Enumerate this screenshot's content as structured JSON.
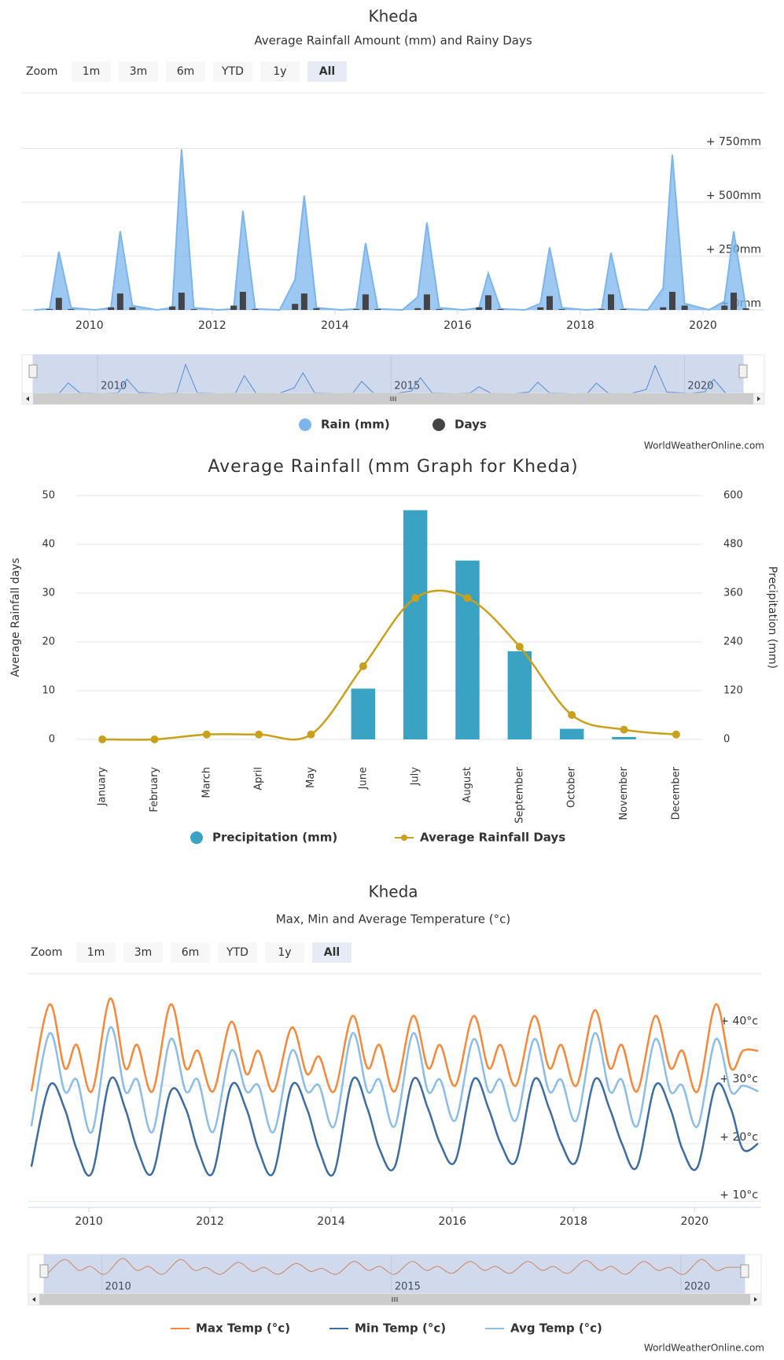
{
  "chart_data": [
    {
      "type": "area",
      "title": "Kheda",
      "subtitle": "Average Rainfall Amount (mm) and Rainy Days",
      "zoom_label": "Zoom",
      "zoom_buttons": [
        "1m",
        "3m",
        "6m",
        "YTD",
        "1y",
        "All"
      ],
      "zoom_disabled": [
        0,
        1
      ],
      "zoom_selected": 5,
      "x": [
        2009.1,
        2009.35,
        2009.5,
        2009.7,
        2010.1,
        2010.35,
        2010.5,
        2010.7,
        2011.1,
        2011.35,
        2011.5,
        2011.7,
        2012.1,
        2012.35,
        2012.5,
        2012.7,
        2013.1,
        2013.35,
        2013.5,
        2013.7,
        2014.1,
        2014.35,
        2014.5,
        2014.7,
        2015.1,
        2015.35,
        2015.5,
        2015.7,
        2016.1,
        2016.35,
        2016.5,
        2016.7,
        2017.1,
        2017.35,
        2017.5,
        2017.7,
        2018.1,
        2018.35,
        2018.5,
        2018.7,
        2019.1,
        2019.35,
        2019.5,
        2019.7,
        2020.1,
        2020.35,
        2020.5,
        2020.7
      ],
      "series": [
        {
          "name": "Rain (mm)",
          "type": "area",
          "color": "#7cb5ec",
          "values": [
            0,
            5,
            270,
            10,
            0,
            10,
            365,
            20,
            0,
            10,
            745,
            10,
            0,
            5,
            460,
            5,
            0,
            140,
            530,
            10,
            0,
            5,
            310,
            5,
            0,
            60,
            405,
            10,
            0,
            10,
            170,
            5,
            0,
            30,
            290,
            10,
            0,
            5,
            265,
            5,
            0,
            100,
            720,
            30,
            0,
            40,
            365,
            10
          ]
        },
        {
          "name": "Days",
          "type": "column",
          "axis": "y2",
          "color": "#434348",
          "values": [
            0,
            1,
            14,
            1,
            0,
            3,
            19,
            3,
            0,
            4,
            20,
            1,
            0,
            5,
            21,
            1,
            0,
            7,
            19,
            2,
            0,
            1,
            18,
            1,
            0,
            2,
            18,
            1,
            0,
            3,
            17,
            1,
            0,
            3,
            16,
            1,
            0,
            1,
            18,
            1,
            0,
            3,
            21,
            5,
            0,
            5,
            20,
            2
          ]
        }
      ],
      "xlim": [
        2008.9,
        2021
      ],
      "xticks": [
        2010,
        2012,
        2014,
        2016,
        2018,
        2020
      ],
      "ylim": [
        0,
        1000
      ],
      "yticks": [
        {
          "value": 0,
          "label": "+ 0mm"
        },
        {
          "value": 250,
          "label": "+ 250mm"
        },
        {
          "value": 500,
          "label": "+ 500mm"
        },
        {
          "value": 750,
          "label": "+ 750mm"
        }
      ],
      "y2lim": [
        0,
        250
      ],
      "grid": true,
      "navigator_xticks": [
        2010,
        2015,
        2020
      ],
      "credits": "WorldWeatherOnline.com"
    },
    {
      "type": "bar",
      "title": "Average Rainfall (mm Graph for Kheda)",
      "categories": [
        "January",
        "February",
        "March",
        "April",
        "May",
        "June",
        "July",
        "August",
        "September",
        "October",
        "November",
        "December"
      ],
      "series": [
        {
          "name": "Precipitation (mm)",
          "type": "column",
          "axis": "y2",
          "color": "#3aa3c4",
          "values": [
            0,
            0,
            0,
            0,
            0,
            125,
            564,
            440,
            217,
            26,
            6,
            0
          ]
        },
        {
          "name": "Average Rainfall Days",
          "type": "line",
          "color": "#c9a01a",
          "values": [
            0,
            0,
            1,
            1,
            1,
            15,
            29,
            29,
            19,
            5,
            2,
            1
          ]
        }
      ],
      "ylabel": "Average Rainfall days",
      "y2label": "Precipitation (mm)",
      "ylim": [
        0,
        50
      ],
      "yticks": [
        0,
        10,
        20,
        30,
        40,
        50
      ],
      "y2lim": [
        0,
        600
      ],
      "y2ticks": [
        0,
        120,
        240,
        360,
        480,
        600
      ],
      "grid": true
    },
    {
      "type": "line",
      "title": "Kheda",
      "subtitle": "Max, Min and Average Temperature (°c)",
      "zoom_label": "Zoom",
      "zoom_buttons": [
        "1m",
        "3m",
        "6m",
        "YTD",
        "1y",
        "All"
      ],
      "zoom_disabled": [
        0,
        1
      ],
      "zoom_selected": 5,
      "x": [
        2009.05,
        2009.35,
        2009.6,
        2009.8,
        2010.05,
        2010.35,
        2010.6,
        2010.8,
        2011.05,
        2011.35,
        2011.6,
        2011.8,
        2012.05,
        2012.35,
        2012.6,
        2012.8,
        2013.05,
        2013.35,
        2013.6,
        2013.8,
        2014.05,
        2014.35,
        2014.6,
        2014.8,
        2015.05,
        2015.35,
        2015.6,
        2015.8,
        2016.05,
        2016.35,
        2016.6,
        2016.8,
        2017.05,
        2017.35,
        2017.6,
        2017.8,
        2018.05,
        2018.35,
        2018.6,
        2018.8,
        2019.05,
        2019.35,
        2019.6,
        2019.8,
        2020.05,
        2020.35,
        2020.6,
        2020.8,
        2021.05
      ],
      "series": [
        {
          "name": "Max Temp (°c)",
          "type": "line",
          "color": "#f7883a",
          "values": [
            29,
            44,
            33,
            37,
            29,
            45,
            33,
            37,
            29,
            44,
            33,
            36,
            29,
            41,
            32,
            36,
            29,
            40,
            32,
            35,
            29,
            42,
            33,
            37,
            29,
            42,
            33,
            37,
            30,
            42,
            33,
            37,
            30,
            42,
            33,
            37,
            30,
            43,
            33,
            37,
            29,
            42,
            33,
            36,
            29,
            44,
            33,
            36,
            36
          ]
        },
        {
          "name": "Min Temp (°c)",
          "type": "line",
          "color": "#3d6ca0",
          "values": [
            16,
            30,
            26,
            19,
            15,
            31,
            26,
            19,
            15,
            29,
            26,
            19,
            15,
            30,
            26,
            19,
            15,
            30,
            26,
            19,
            15,
            31,
            26,
            19,
            16,
            31,
            26,
            20,
            17,
            31,
            26,
            20,
            17,
            31,
            26,
            20,
            17,
            31,
            26,
            20,
            16,
            30,
            26,
            19,
            16,
            30,
            26,
            19,
            20
          ]
        },
        {
          "name": "Avg Temp (°c)",
          "type": "line",
          "color": "#8cbde8",
          "values": [
            23,
            39,
            29,
            31,
            22,
            40,
            29,
            31,
            22,
            38,
            29,
            31,
            22,
            36,
            29,
            30,
            22,
            36,
            29,
            30,
            23,
            39,
            29,
            31,
            23,
            39,
            29,
            31,
            24,
            38,
            29,
            31,
            24,
            38,
            29,
            31,
            24,
            39,
            29,
            31,
            23,
            38,
            29,
            30,
            23,
            38,
            29,
            30,
            29
          ]
        }
      ],
      "xlim": [
        2009,
        2021.1
      ],
      "xticks": [
        2010,
        2012,
        2014,
        2016,
        2018,
        2020
      ],
      "ylim": [
        9,
        49
      ],
      "yticks": [
        {
          "value": 10,
          "label": "+ 10°c"
        },
        {
          "value": 20,
          "label": "+ 20°c"
        },
        {
          "value": 30,
          "label": "+ 30°c"
        },
        {
          "value": 40,
          "label": "+ 40°c"
        }
      ],
      "grid": true,
      "navigator_xticks": [
        2010,
        2015,
        2020
      ],
      "credits": "WorldWeatherOnline.com"
    }
  ]
}
